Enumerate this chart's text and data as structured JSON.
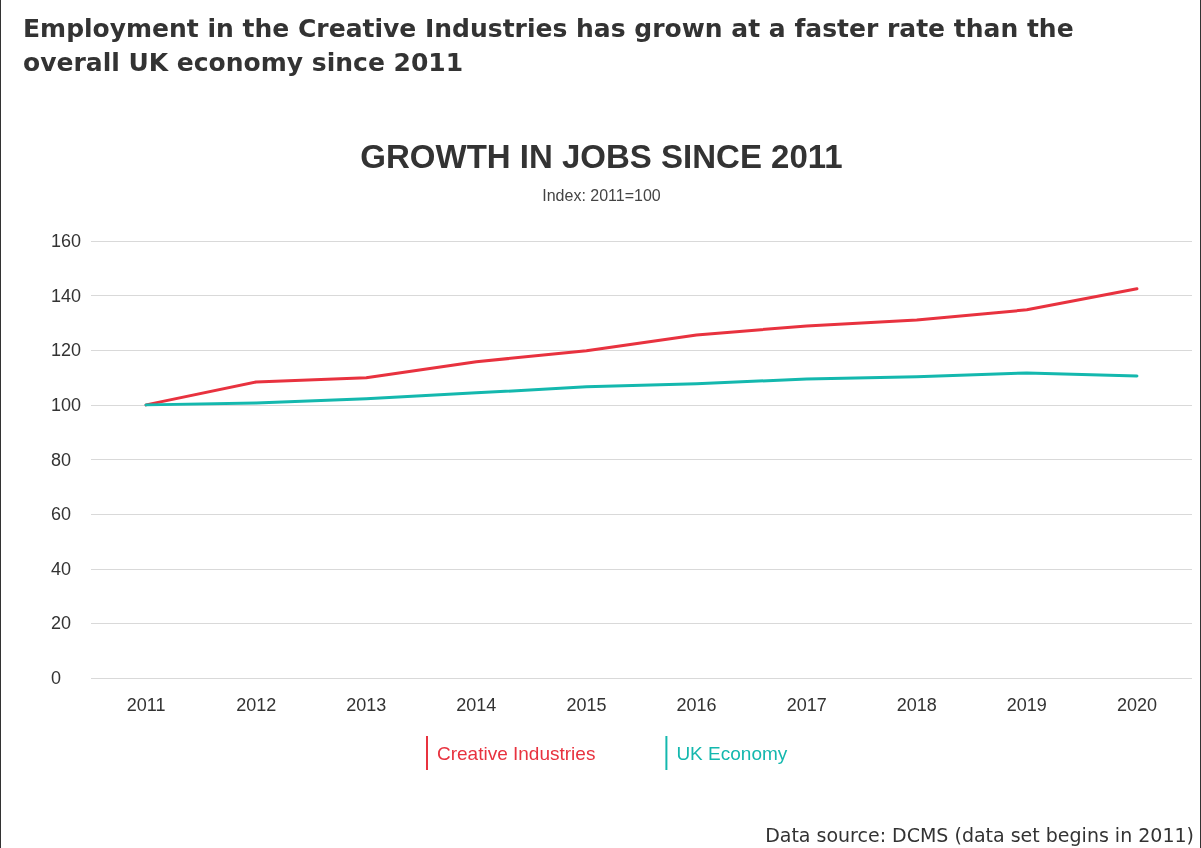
{
  "chart_data": {
    "type": "line",
    "title": "Employment in the Creative Industries has grown at a faster rate than the overall UK economy since 2011",
    "subtitle": "GROWTH IN JOBS SINCE 2011",
    "annotations": [
      "Index: 2011=100",
      "Data source: DCMS (data set begins in 2011)"
    ],
    "categories": [
      "2011",
      "2012",
      "2013",
      "2014",
      "2015",
      "2016",
      "2017",
      "2018",
      "2019",
      "2020"
    ],
    "series": [
      {
        "name": "Creative Industries",
        "color": "#e8323f",
        "values": [
          100,
          108.4,
          109.9,
          115.8,
          119.8,
          125.6,
          128.9,
          131.1,
          134.8,
          142.5
        ]
      },
      {
        "name": "UK Economy",
        "color": "#14b8ae",
        "values": [
          100,
          100.7,
          102.2,
          104.4,
          106.6,
          107.7,
          109.5,
          110.3,
          111.7,
          110.6
        ]
      }
    ],
    "ylim": [
      0,
      160
    ],
    "yticks": [
      0,
      20,
      40,
      60,
      80,
      100,
      120,
      140,
      160
    ],
    "grid": "y",
    "legend": "bottom",
    "marker": "none",
    "line_style": "solid"
  }
}
